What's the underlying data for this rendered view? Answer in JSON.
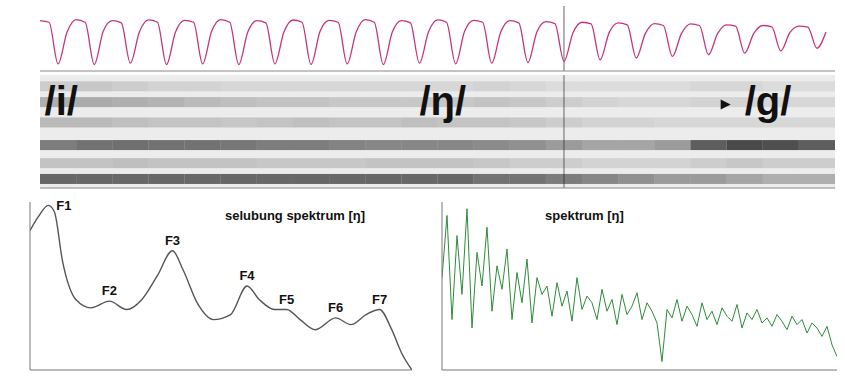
{
  "chart_data": [
    {
      "type": "line",
      "tick_labels": false,
      "color": "#c2357d",
      "xlim": [
        0,
        88
      ],
      "ylim": [
        -1,
        1
      ],
      "cursor_x": 58,
      "values": [
        0.55,
        0.5,
        -0.78,
        0.2,
        0.58,
        0.5,
        -0.8,
        0.22,
        0.55,
        0.48,
        -0.76,
        0.2,
        0.57,
        0.5,
        -0.8,
        0.2,
        0.56,
        0.5,
        -0.78,
        0.22,
        0.58,
        0.5,
        -0.8,
        0.2,
        0.55,
        0.48,
        -0.78,
        0.2,
        0.57,
        0.5,
        -0.8,
        0.22,
        0.56,
        0.5,
        -0.78,
        0.2,
        0.58,
        0.5,
        -0.8,
        0.2,
        0.55,
        0.48,
        -0.76,
        0.2,
        0.57,
        0.5,
        -0.78,
        0.22,
        0.56,
        0.5,
        -0.76,
        0.2,
        0.55,
        0.48,
        -0.74,
        0.2,
        0.52,
        0.46,
        -0.7,
        0.18,
        0.5,
        0.45,
        -0.66,
        0.18,
        0.48,
        0.42,
        -0.6,
        0.15,
        0.46,
        0.4,
        -0.55,
        0.15,
        0.45,
        0.4,
        -0.5,
        0.15,
        0.42,
        0.38,
        -0.45,
        0.15,
        0.4,
        0.36,
        -0.38,
        0.18,
        0.38,
        0.35,
        -0.3,
        0.2
      ]
    },
    {
      "type": "heatmap",
      "tick_labels": false,
      "color": "#222222",
      "xlim": [
        0,
        88
      ],
      "ylim": [
        0,
        100
      ],
      "x": [
        0,
        4,
        8,
        12,
        16,
        20,
        24,
        28,
        32,
        36,
        40,
        44,
        48,
        52,
        56,
        60,
        64,
        68,
        72,
        76,
        80,
        84
      ],
      "rows": [
        {
          "y": 90,
          "values": [
            0.15,
            0.18,
            0.15,
            0.12,
            0.12,
            0.1,
            0.1,
            0.1,
            0.1,
            0.1,
            0.1,
            0.1,
            0.12,
            0.1,
            0.08,
            0.08,
            0.08,
            0.08,
            0.1,
            0.1,
            0.08,
            0.08
          ]
        },
        {
          "y": 76,
          "values": [
            0.3,
            0.32,
            0.3,
            0.28,
            0.25,
            0.22,
            0.2,
            0.2,
            0.18,
            0.18,
            0.18,
            0.18,
            0.2,
            0.18,
            0.15,
            0.12,
            0.1,
            0.1,
            0.12,
            0.12,
            0.1,
            0.1
          ]
        },
        {
          "y": 58,
          "values": [
            0.25,
            0.25,
            0.22,
            0.2,
            0.2,
            0.18,
            0.2,
            0.22,
            0.2,
            0.2,
            0.22,
            0.2,
            0.2,
            0.18,
            0.15,
            0.12,
            0.12,
            0.1,
            0.1,
            0.1,
            0.1,
            0.1
          ]
        },
        {
          "y": 38,
          "values": [
            0.55,
            0.6,
            0.62,
            0.6,
            0.6,
            0.58,
            0.55,
            0.55,
            0.52,
            0.5,
            0.5,
            0.5,
            0.48,
            0.45,
            0.4,
            0.35,
            0.35,
            0.4,
            0.7,
            0.8,
            0.78,
            0.7
          ]
        },
        {
          "y": 22,
          "values": [
            0.2,
            0.2,
            0.22,
            0.2,
            0.2,
            0.2,
            0.18,
            0.18,
            0.18,
            0.2,
            0.2,
            0.2,
            0.18,
            0.15,
            0.15,
            0.12,
            0.12,
            0.12,
            0.15,
            0.18,
            0.15,
            0.15
          ]
        },
        {
          "y": 8,
          "values": [
            0.65,
            0.65,
            0.65,
            0.65,
            0.65,
            0.65,
            0.65,
            0.65,
            0.65,
            0.65,
            0.65,
            0.65,
            0.6,
            0.6,
            0.55,
            0.5,
            0.45,
            0.4,
            0.4,
            0.35,
            0.3,
            0.3
          ]
        }
      ],
      "annotations": [
        {
          "text": "/i/",
          "x": 0.5,
          "y": 74
        },
        {
          "text": "/ŋ/",
          "x": 42,
          "y": 74
        },
        {
          "text": "/g/",
          "x": 78,
          "y": 74
        }
      ]
    },
    {
      "type": "line",
      "title": "selubung spektrum [ŋ]",
      "tick_labels": false,
      "color": "#555555",
      "xlim": [
        0,
        100
      ],
      "ylim": [
        0,
        100
      ],
      "x": [
        0,
        2.1,
        4.8,
        6.4,
        8.5,
        12,
        16,
        20.8,
        25.3,
        29.3,
        33.3,
        37.3,
        40,
        44,
        48,
        52.5,
        56.8,
        60,
        64,
        67.2,
        70.7,
        74.7,
        80,
        84,
        88,
        91.5,
        94.7,
        97.3,
        100
      ],
      "values": [
        83,
        91,
        98,
        94,
        65,
        42,
        37,
        41,
        36,
        42,
        56,
        71,
        60,
        39,
        30,
        33,
        50,
        42,
        36,
        36,
        30,
        24,
        31,
        27,
        33,
        36,
        24,
        10,
        0
      ],
      "annotations": [
        {
          "text": "F1",
          "x": 4.8,
          "y": 98
        },
        {
          "text": "F2",
          "x": 20.8,
          "y": 41
        },
        {
          "text": "F3",
          "x": 37.3,
          "y": 71
        },
        {
          "text": "F4",
          "x": 56.8,
          "y": 50
        },
        {
          "text": "F5",
          "x": 67.2,
          "y": 36
        },
        {
          "text": "F6",
          "x": 80,
          "y": 31
        },
        {
          "text": "F7",
          "x": 91.5,
          "y": 36
        }
      ]
    },
    {
      "type": "line",
      "title": "spektrum [ŋ]",
      "tick_labels": false,
      "color": "#2e8b3a",
      "xlim": [
        0,
        79
      ],
      "ylim": [
        0,
        100
      ],
      "values": [
        55,
        92,
        30,
        80,
        45,
        96,
        25,
        70,
        50,
        85,
        35,
        62,
        48,
        72,
        30,
        58,
        40,
        66,
        28,
        55,
        45,
        50,
        32,
        52,
        38,
        47,
        29,
        55,
        36,
        44,
        40,
        30,
        48,
        35,
        42,
        27,
        45,
        33,
        38,
        46,
        30,
        40,
        35,
        28,
        5,
        36,
        31,
        42,
        29,
        38,
        33,
        26,
        40,
        30,
        35,
        27,
        37,
        32,
        29,
        39,
        25,
        34,
        30,
        36,
        28,
        31,
        26,
        33,
        29,
        24,
        32,
        27,
        30,
        22,
        28,
        25,
        20,
        26,
        15,
        8
      ]
    }
  ]
}
